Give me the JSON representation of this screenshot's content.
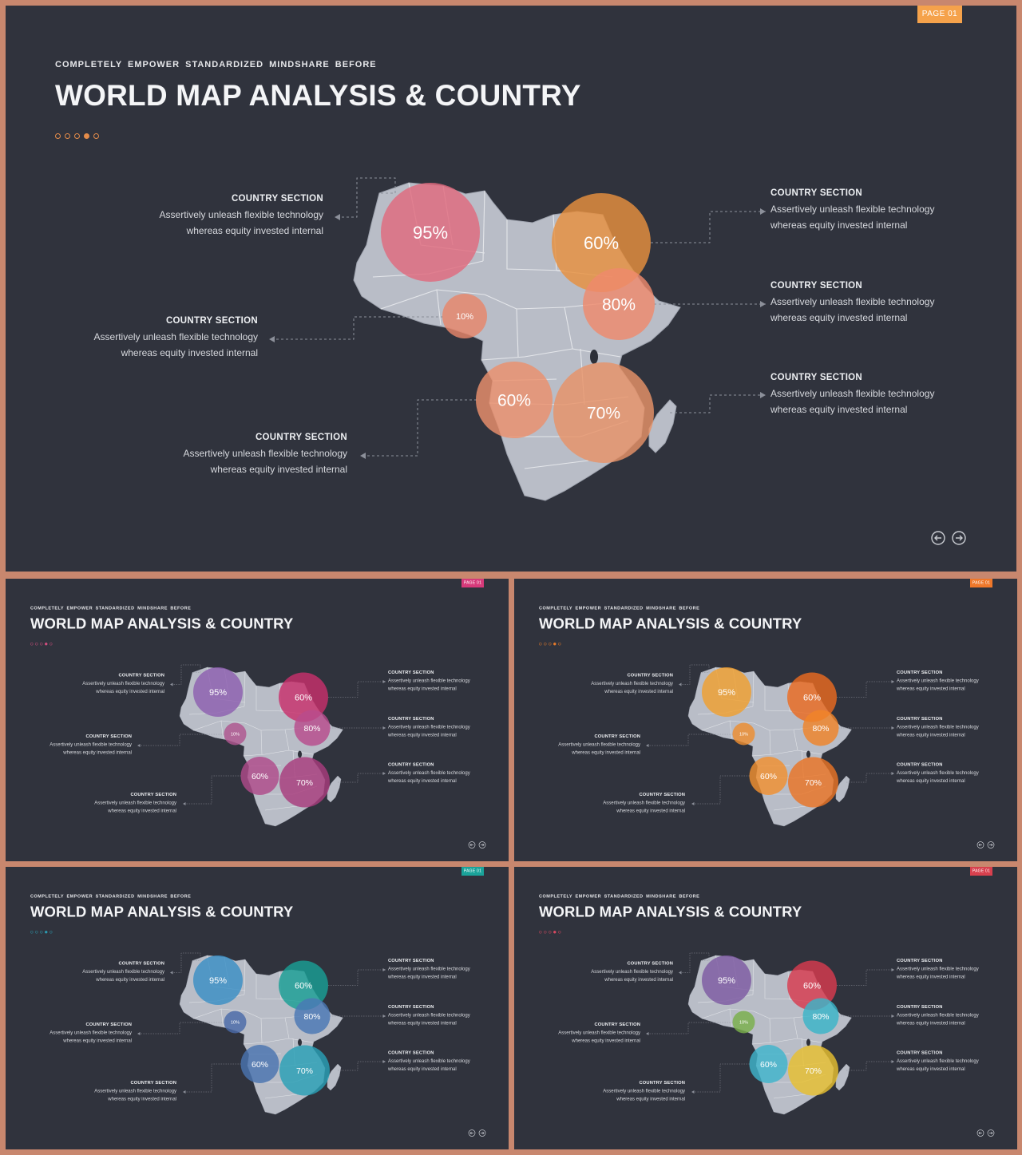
{
  "slides": [
    {
      "page_tag": "PAGE 01",
      "tag_color": "#f5a24b",
      "subtitle": "COMPLETELY EMPOWER STANDARDIZED MINDSHARE BEFORE",
      "title": "WORLD MAP ANALYSIS & COUNTRY",
      "dot_colors": [
        "#e48c4a",
        "#e48c4a",
        "#e48c4a",
        "#e48c4a",
        "#e48c4a"
      ],
      "bubbles": [
        {
          "label": "95%",
          "color": "#e06a7e"
        },
        {
          "label": "10%",
          "color": "#e8866a"
        },
        {
          "label": "60%",
          "color": "#e8903e"
        },
        {
          "label": "80%",
          "color": "#ef8a6c"
        },
        {
          "label": "60%",
          "color": "#eb906c"
        },
        {
          "label": "70%",
          "color": "#e89368"
        }
      ]
    },
    {
      "page_tag": "PAGE 01",
      "tag_color": "#d63a7a",
      "subtitle": "COMPLETELY EMPOWER STANDARDIZED MINDSHARE BEFORE",
      "title": "WORLD MAP ANALYSIS & COUNTRY",
      "dot_colors": [
        "#d14e7e",
        "#d14e7e",
        "#d14e7e",
        "#d14e7e",
        "#d14e7e"
      ],
      "bubbles": [
        {
          "label": "95%",
          "color": "#8e5fb0"
        },
        {
          "label": "10%",
          "color": "#b0558f"
        },
        {
          "label": "60%",
          "color": "#c8306b"
        },
        {
          "label": "80%",
          "color": "#b84c8c"
        },
        {
          "label": "60%",
          "color": "#b04a8a"
        },
        {
          "label": "70%",
          "color": "#a83c7c"
        }
      ]
    },
    {
      "page_tag": "PAGE 01",
      "tag_color": "#f0782a",
      "subtitle": "COMPLETELY EMPOWER STANDARDIZED MINDSHARE BEFORE",
      "title": "WORLD MAP ANALYSIS & COUNTRY",
      "dot_colors": [
        "#e67a2a",
        "#e67a2a",
        "#e67a2a",
        "#e67a2a",
        "#e67a2a"
      ],
      "bubbles": [
        {
          "label": "95%",
          "color": "#f0a030"
        },
        {
          "label": "10%",
          "color": "#ee8e30"
        },
        {
          "label": "60%",
          "color": "#ea6a20"
        },
        {
          "label": "80%",
          "color": "#f08428"
        },
        {
          "label": "60%",
          "color": "#f29030"
        },
        {
          "label": "70%",
          "color": "#ea7424"
        }
      ]
    },
    {
      "page_tag": "PAGE 01",
      "tag_color": "#1aa39a",
      "subtitle": "COMPLETELY EMPOWER STANDARDIZED MINDSHARE BEFORE",
      "title": "WORLD MAP ANALYSIS & COUNTRY",
      "dot_colors": [
        "#2b9ab0",
        "#2b9ab0",
        "#2b9ab0",
        "#2b9ab0",
        "#2b9ab0"
      ],
      "bubbles": [
        {
          "label": "95%",
          "color": "#3a8fc4"
        },
        {
          "label": "10%",
          "color": "#4a6aa8"
        },
        {
          "label": "60%",
          "color": "#1a9f95"
        },
        {
          "label": "80%",
          "color": "#4a78b4"
        },
        {
          "label": "60%",
          "color": "#4a74b0"
        },
        {
          "label": "70%",
          "color": "#2aa0b6"
        }
      ]
    },
    {
      "page_tag": "PAGE 01",
      "tag_color": "#d8404e",
      "subtitle": "COMPLETELY EMPOWER STANDARDIZED MINDSHARE BEFORE",
      "title": "WORLD MAP ANALYSIS & COUNTRY",
      "dot_colors": [
        "#d84860",
        "#d84860",
        "#d84860",
        "#d84860",
        "#d84860"
      ],
      "bubbles": [
        {
          "label": "95%",
          "color": "#7e5aa2"
        },
        {
          "label": "10%",
          "color": "#7ab04a"
        },
        {
          "label": "60%",
          "color": "#d83a4e"
        },
        {
          "label": "80%",
          "color": "#3ab4c8"
        },
        {
          "label": "60%",
          "color": "#40b4cc"
        },
        {
          "label": "70%",
          "color": "#e8c030"
        }
      ]
    }
  ],
  "sections": [
    {
      "heading": "COUNTRY SECTION",
      "line1": "Assertively unleash flexible technology",
      "line2": "whereas equity invested internal"
    },
    {
      "heading": "COUNTRY SECTION",
      "line1": "Assertively unleash flexible technology",
      "line2": "whereas equity invested internal"
    },
    {
      "heading": "COUNTRY SECTION",
      "line1": "Assertively unleash flexible technology",
      "line2": "whereas equity invested internal"
    },
    {
      "heading": "COUNTRY SECTION",
      "line1": "Assertively unleash flexible technology",
      "line2": "whereas equity invested internal"
    },
    {
      "heading": "COUNTRY SECTION",
      "line1": "Assertively unleash flexible technology",
      "line2": "whereas equity invested internal"
    },
    {
      "heading": "COUNTRY SECTION",
      "line1": "Assertively unleash flexible technology",
      "line2": "whereas equity invested internal"
    }
  ],
  "icons": {
    "prev": "arrow-left-circle-icon",
    "next": "arrow-right-circle-icon"
  }
}
